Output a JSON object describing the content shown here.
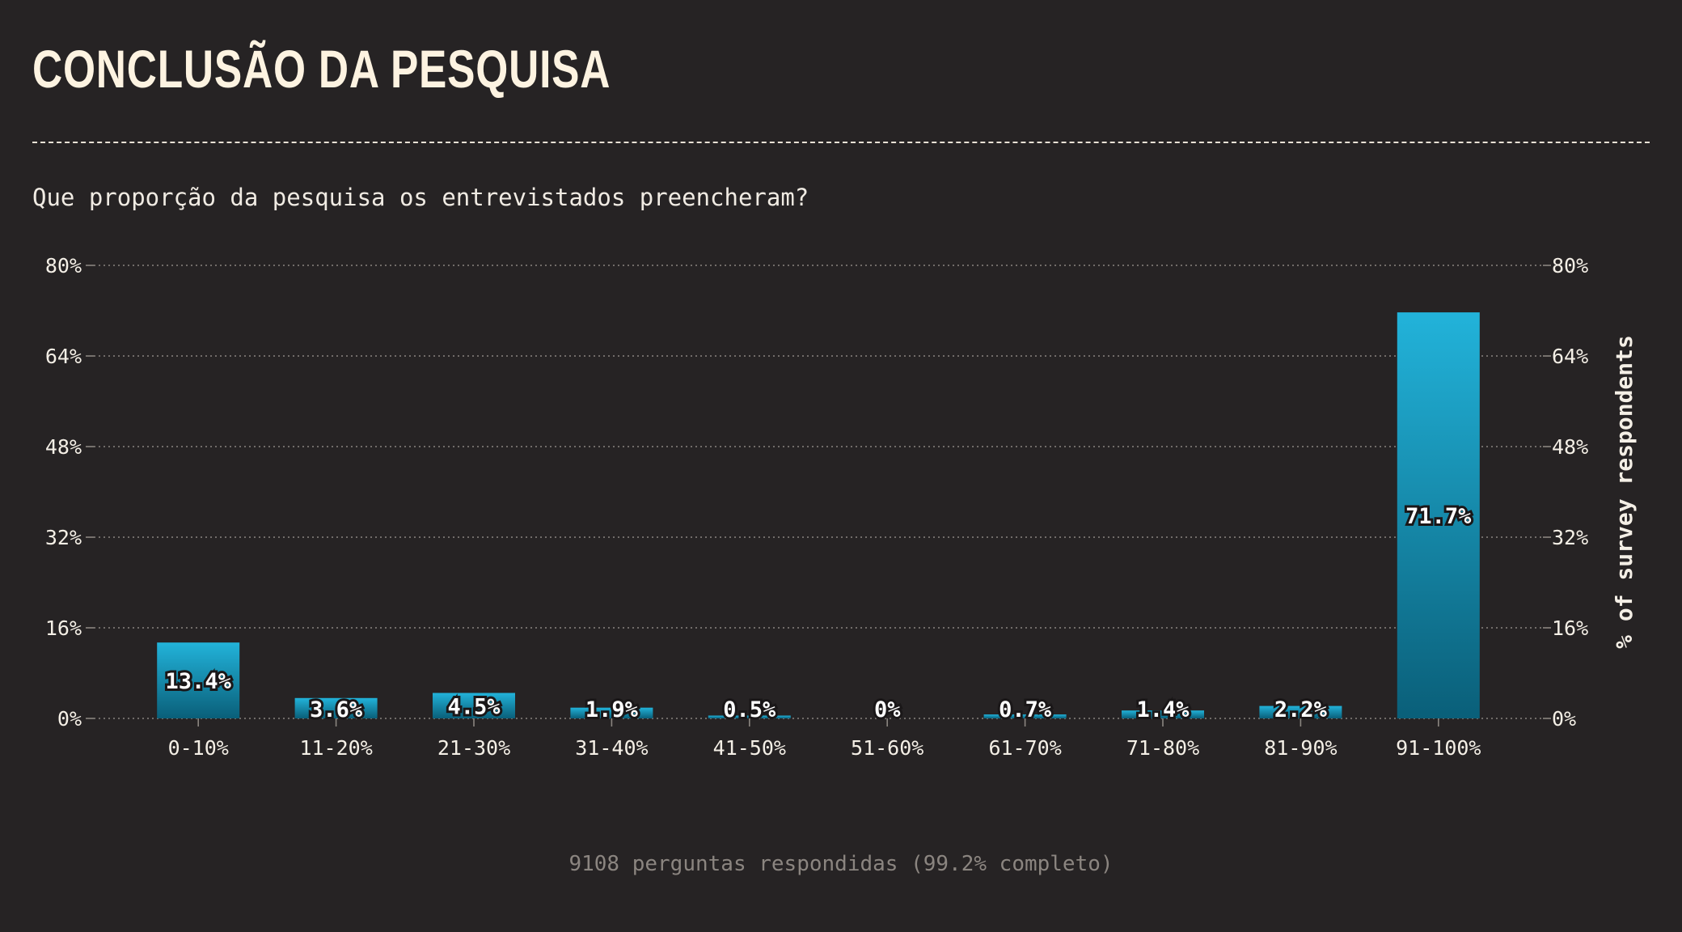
{
  "header": {
    "title": "CONCLUSÃO DA PESQUISA",
    "subtitle": "Que proporção da pesquisa os entrevistados preencheram?"
  },
  "footer": {
    "text": "9108 perguntas respondidas (99.2% completo)"
  },
  "colors": {
    "background": "#262324",
    "bar_top": "#22b3da",
    "bar_bottom": "#0a5f79",
    "text": "#f4efe6",
    "grid": "#8a8580"
  },
  "chart_data": {
    "type": "bar",
    "title": "",
    "xlabel": "",
    "ylabel": "% of survey respondents",
    "categories": [
      "0-10%",
      "11-20%",
      "21-30%",
      "31-40%",
      "41-50%",
      "51-60%",
      "61-70%",
      "71-80%",
      "81-90%",
      "91-100%"
    ],
    "values": [
      13.4,
      3.6,
      4.5,
      1.9,
      0.5,
      0,
      0.7,
      1.4,
      2.2,
      71.7
    ],
    "value_labels": [
      "13.4%",
      "3.6%",
      "4.5%",
      "1.9%",
      "0.5%",
      "0%",
      "0.7%",
      "1.4%",
      "2.2%",
      "71.7%"
    ],
    "ylim": [
      0,
      80
    ],
    "yticks": [
      0,
      16,
      32,
      48,
      64,
      80
    ],
    "ytick_labels": [
      "0%",
      "16%",
      "32%",
      "48%",
      "64%",
      "80%"
    ],
    "grid": true,
    "legend": "none"
  }
}
